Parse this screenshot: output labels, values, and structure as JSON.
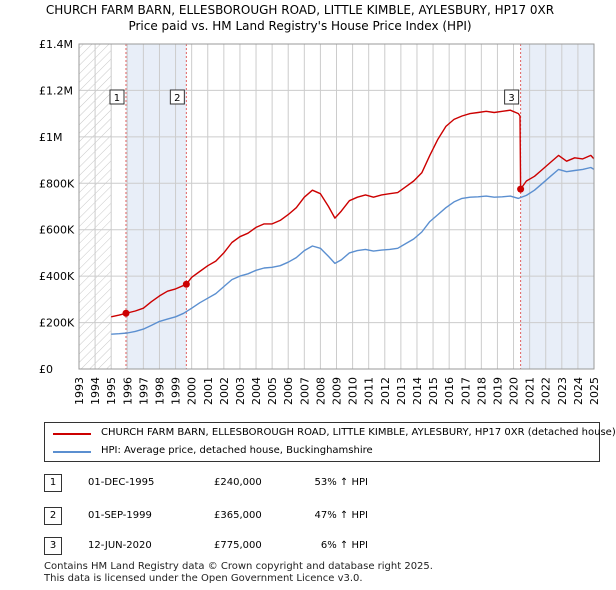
{
  "title_line1": "CHURCH FARM BARN, ELLESBOROUGH ROAD, LITTLE KIMBLE, AYLESBURY, HP17 0XR",
  "title_line2": "Price paid vs. HM Land Registry's House Price Index (HPI)",
  "legend": {
    "property_label": "CHURCH FARM BARN, ELLESBOROUGH ROAD, LITTLE KIMBLE, AYLESBURY, HP17 0XR (detached house)",
    "hpi_label": "HPI: Average price, detached house, Buckinghamshire"
  },
  "sales": [
    {
      "num": "1",
      "date": "01-DEC-1995",
      "price": "£240,000",
      "hpi": "53% ↑ HPI"
    },
    {
      "num": "2",
      "date": "01-SEP-1999",
      "price": "£365,000",
      "hpi": "47% ↑ HPI"
    },
    {
      "num": "3",
      "date": "12-JUN-2020",
      "price": "£775,000",
      "hpi": "6% ↑ HPI"
    }
  ],
  "footer_line1": "Contains HM Land Registry data © Crown copyright and database right 2025.",
  "footer_line2": "This data is licensed under the Open Government Licence v3.0.",
  "colors": {
    "property": "#cc0000",
    "hpi": "#5b8fd0",
    "shade": "#e8eef8",
    "grid": "#cccccc",
    "vline": "#e06060"
  },
  "chart_data": {
    "type": "line",
    "xlim": [
      1993,
      2025
    ],
    "ylim": [
      0,
      1400000
    ],
    "yticks": [
      0,
      200000,
      400000,
      600000,
      800000,
      1000000,
      1200000,
      1400000
    ],
    "ytick_labels": [
      "£0",
      "£200K",
      "£400K",
      "£600K",
      "£800K",
      "£1M",
      "£1.2M",
      "£1.4M"
    ],
    "xticks": [
      "1993",
      "1994",
      "1995",
      "1996",
      "1997",
      "1998",
      "1999",
      "2000",
      "2001",
      "2002",
      "2003",
      "2004",
      "2005",
      "2006",
      "2007",
      "2008",
      "2009",
      "2010",
      "2011",
      "2012",
      "2013",
      "2014",
      "2015",
      "2016",
      "2017",
      "2018",
      "2019",
      "2020",
      "2021",
      "2022",
      "2023",
      "2024",
      "2025"
    ],
    "hatched_region": [
      1993,
      1995.0
    ],
    "shaded_regions": [
      [
        1995.92,
        1999.67
      ],
      [
        2020.44,
        2025
      ]
    ],
    "sale_markers": [
      {
        "label": "1",
        "x": 1995.92,
        "y": 240000
      },
      {
        "label": "2",
        "x": 1999.67,
        "y": 365000
      },
      {
        "label": "3",
        "x": 2020.44,
        "y": 775000
      }
    ],
    "series": [
      {
        "name": "CHURCH FARM BARN, ELLESBOROUGH ROAD, LITTLE KIMBLE, AYLESBURY, HP17 0XR (detached house)",
        "x": [
          1995.0,
          1995.5,
          1995.92,
          1996.5,
          1997.0,
          1997.5,
          1998.0,
          1998.5,
          1999.0,
          1999.67,
          2000.0,
          2000.5,
          2001.0,
          2001.5,
          2002.0,
          2002.5,
          2003.0,
          2003.5,
          2004.0,
          2004.5,
          2005.0,
          2005.5,
          2006.0,
          2006.5,
          2007.0,
          2007.5,
          2008.0,
          2008.5,
          2008.9,
          2009.3,
          2009.8,
          2010.3,
          2010.8,
          2011.3,
          2011.8,
          2012.3,
          2012.8,
          2013.3,
          2013.8,
          2014.3,
          2014.8,
          2015.3,
          2015.8,
          2016.3,
          2016.8,
          2017.3,
          2017.8,
          2018.3,
          2018.8,
          2019.3,
          2019.8,
          2020.3,
          2020.4,
          2020.44,
          2020.8,
          2021.3,
          2021.8,
          2022.3,
          2022.8,
          2023.3,
          2023.8,
          2024.3,
          2024.8,
          2025.0
        ],
        "values": [
          225000,
          232000,
          240000,
          250000,
          262000,
          290000,
          315000,
          335000,
          345000,
          365000,
          395000,
          420000,
          445000,
          465000,
          500000,
          545000,
          570000,
          585000,
          610000,
          625000,
          625000,
          640000,
          665000,
          695000,
          740000,
          770000,
          755000,
          700000,
          650000,
          680000,
          725000,
          740000,
          750000,
          740000,
          750000,
          755000,
          760000,
          785000,
          810000,
          845000,
          920000,
          990000,
          1045000,
          1075000,
          1090000,
          1100000,
          1105000,
          1110000,
          1105000,
          1110000,
          1115000,
          1100000,
          1090000,
          775000,
          810000,
          830000,
          860000,
          890000,
          920000,
          895000,
          910000,
          905000,
          920000,
          905000
        ]
      },
      {
        "name": "HPI: Average price, detached house, Buckinghamshire",
        "x": [
          1995.0,
          1995.5,
          1996.0,
          1996.5,
          1997.0,
          1997.5,
          1998.0,
          1998.5,
          1999.0,
          1999.5,
          2000.0,
          2000.5,
          2001.0,
          2001.5,
          2002.0,
          2002.5,
          2003.0,
          2003.5,
          2004.0,
          2004.5,
          2005.0,
          2005.5,
          2006.0,
          2006.5,
          2007.0,
          2007.5,
          2008.0,
          2008.5,
          2008.9,
          2009.3,
          2009.8,
          2010.3,
          2010.8,
          2011.3,
          2011.8,
          2012.3,
          2012.8,
          2013.3,
          2013.8,
          2014.3,
          2014.8,
          2015.3,
          2015.8,
          2016.3,
          2016.8,
          2017.3,
          2017.8,
          2018.3,
          2018.8,
          2019.3,
          2019.8,
          2020.3,
          2020.8,
          2021.3,
          2021.8,
          2022.3,
          2022.8,
          2023.3,
          2023.8,
          2024.3,
          2024.8,
          2025.0
        ],
        "values": [
          150000,
          152000,
          155000,
          162000,
          172000,
          188000,
          205000,
          215000,
          225000,
          240000,
          262000,
          285000,
          305000,
          325000,
          355000,
          385000,
          400000,
          410000,
          425000,
          435000,
          438000,
          445000,
          460000,
          480000,
          510000,
          530000,
          520000,
          485000,
          455000,
          470000,
          500000,
          510000,
          515000,
          508000,
          512000,
          515000,
          520000,
          540000,
          560000,
          590000,
          635000,
          665000,
          695000,
          720000,
          735000,
          740000,
          742000,
          745000,
          740000,
          742000,
          745000,
          735000,
          748000,
          770000,
          800000,
          830000,
          860000,
          850000,
          855000,
          860000,
          868000,
          860000
        ]
      }
    ]
  }
}
